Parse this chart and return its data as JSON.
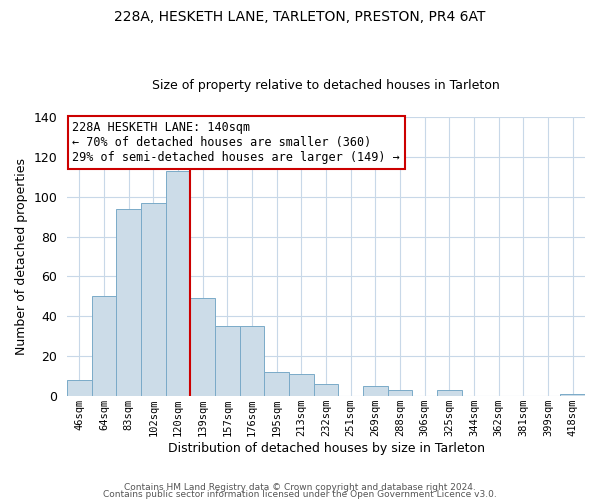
{
  "title": "228A, HESKETH LANE, TARLETON, PRESTON, PR4 6AT",
  "subtitle": "Size of property relative to detached houses in Tarleton",
  "xlabel": "Distribution of detached houses by size in Tarleton",
  "ylabel": "Number of detached properties",
  "bar_labels": [
    "46sqm",
    "64sqm",
    "83sqm",
    "102sqm",
    "120sqm",
    "139sqm",
    "157sqm",
    "176sqm",
    "195sqm",
    "213sqm",
    "232sqm",
    "251sqm",
    "269sqm",
    "288sqm",
    "306sqm",
    "325sqm",
    "344sqm",
    "362sqm",
    "381sqm",
    "399sqm",
    "418sqm"
  ],
  "bar_values": [
    8,
    50,
    94,
    97,
    113,
    49,
    35,
    35,
    12,
    11,
    6,
    0,
    5,
    3,
    0,
    3,
    0,
    0,
    0,
    0,
    1
  ],
  "bar_color": "#ccdce8",
  "bar_edge_color": "#7aaac8",
  "annotation_title": "228A HESKETH LANE: 140sqm",
  "annotation_line1": "← 70% of detached houses are smaller (360)",
  "annotation_line2": "29% of semi-detached houses are larger (149) →",
  "annotation_box_color": "#ffffff",
  "annotation_box_edge": "#cc0000",
  "vline_color": "#cc0000",
  "ylim": [
    0,
    140
  ],
  "yticks": [
    0,
    20,
    40,
    60,
    80,
    100,
    120,
    140
  ],
  "footer1": "Contains HM Land Registry data © Crown copyright and database right 2024.",
  "footer2": "Contains public sector information licensed under the Open Government Licence v3.0.",
  "background_color": "#ffffff",
  "grid_color": "#c8d8e8"
}
